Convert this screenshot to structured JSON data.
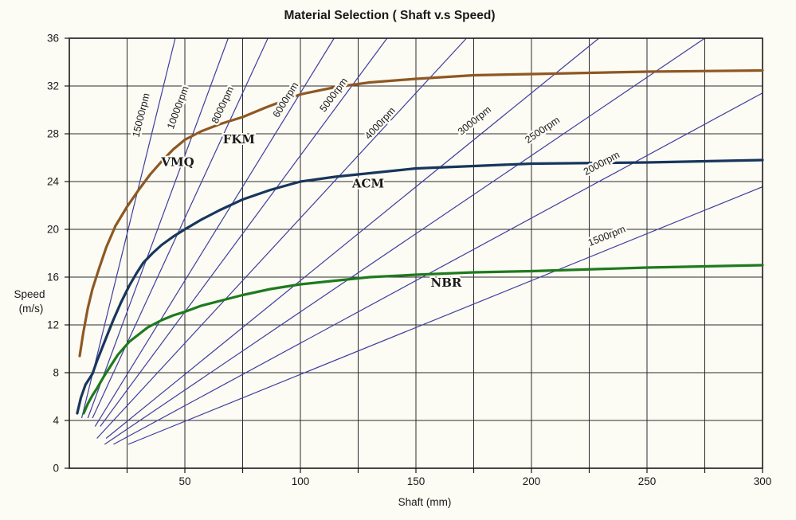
{
  "title": "Material Selection ( Shaft v.s Speed)",
  "axes": {
    "x": {
      "label": "Shaft (mm)",
      "min": 0,
      "max": 300,
      "tick_labels": [
        50,
        100,
        150,
        200,
        250,
        300
      ],
      "grid_step": 25
    },
    "y": {
      "label_line1": "Speed",
      "label_line2": "(m/s)",
      "min": 0,
      "max": 36,
      "tick_labels": [
        0,
        4,
        8,
        12,
        16,
        20,
        24,
        28,
        32,
        36
      ],
      "grid_step": 4
    }
  },
  "colors": {
    "background": "#FCFBF4",
    "grid": "#2b2b2b",
    "frame": "#1a1a1a",
    "rpm_line": "#3E3E9E",
    "fkm_vmq": "#8E5823",
    "acm": "#17365D",
    "nbr": "#1E7A1E",
    "text": "#1a1a1a"
  },
  "chart_data": {
    "type": "line",
    "title": "Material Selection ( Shaft v.s Speed)",
    "xlabel": "Shaft (mm)",
    "ylabel": "Speed (m/s)",
    "xlim": [
      0,
      300
    ],
    "ylim": [
      0,
      36
    ],
    "grid": "on",
    "legend": "none",
    "series": [
      {
        "name": "FKM / VMQ",
        "color_key": "fkm_vmq",
        "x": [
          4.5,
          6,
          8,
          10,
          13,
          16,
          20,
          25,
          30,
          35,
          40,
          45,
          50,
          57,
          65,
          75,
          85,
          100,
          115,
          130,
          150,
          175,
          200,
          250,
          300
        ],
        "y": [
          9.4,
          11.3,
          13.4,
          15.0,
          16.8,
          18.5,
          20.3,
          21.9,
          23.3,
          24.6,
          25.7,
          26.7,
          27.5,
          28.2,
          28.8,
          29.4,
          30.2,
          31.3,
          31.9,
          32.3,
          32.6,
          32.9,
          33.0,
          33.2,
          33.3
        ]
      },
      {
        "name": "ACM",
        "color_key": "acm",
        "x": [
          3.4,
          5,
          7,
          10,
          12,
          15.5,
          19,
          22.4,
          26,
          29,
          32,
          36,
          40,
          45,
          50,
          57,
          65,
          75,
          87,
          100,
          115,
          130,
          150,
          175,
          200,
          250,
          300
        ],
        "y": [
          4.6,
          5.9,
          7.0,
          7.9,
          9.0,
          10.7,
          12.4,
          13.9,
          15.3,
          16.3,
          17.2,
          18.0,
          18.7,
          19.4,
          20.0,
          20.8,
          21.6,
          22.5,
          23.3,
          24.0,
          24.4,
          24.7,
          25.1,
          25.3,
          25.5,
          25.6,
          25.8
        ]
      },
      {
        "name": "NBR",
        "color_key": "nbr",
        "x": [
          6.2,
          8,
          10,
          12,
          15,
          18,
          21,
          26,
          30,
          34,
          40,
          45,
          50,
          57,
          65,
          75,
          87,
          100,
          115,
          130,
          150,
          175,
          200,
          250,
          300
        ],
        "y": [
          4.6,
          5.4,
          6.1,
          6.7,
          7.7,
          8.6,
          9.5,
          10.6,
          11.2,
          11.8,
          12.4,
          12.8,
          13.1,
          13.6,
          14.0,
          14.5,
          15.0,
          15.4,
          15.7,
          16.0,
          16.2,
          16.4,
          16.5,
          16.8,
          17.0
        ]
      }
    ],
    "material_labels": [
      {
        "text": "FKM",
        "x": 73.4,
        "y": 27.2,
        "series": "FKM / VMQ"
      },
      {
        "text": "VMQ",
        "x": 46.9,
        "y": 25.3,
        "series": "FKM / VMQ"
      },
      {
        "text": "ACM",
        "x": 129.3,
        "y": 23.5,
        "series": "ACM"
      },
      {
        "text": "NBR",
        "x": 163.1,
        "y": 15.2,
        "series": "NBR"
      }
    ],
    "rpm_lines": {
      "formula": "v_mps = π × d_mm × rpm / 60000",
      "color_key": "rpm_line",
      "lines": [
        {
          "rpm": 15000,
          "label": "15000rpm",
          "v_start": 4.2,
          "label_x": 32.4,
          "label_y": 29.5
        },
        {
          "rpm": 10000,
          "label": "10000rpm",
          "v_start": 4.2,
          "label_x": 48.3,
          "label_y": 30.1
        },
        {
          "rpm": 8000,
          "label": "8000rpm",
          "v_start": 4.2,
          "label_x": 67.6,
          "label_y": 30.3
        },
        {
          "rpm": 6000,
          "label": "6000rpm",
          "v_start": 3.5,
          "label_x": 94.8,
          "label_y": 30.7
        },
        {
          "rpm": 5000,
          "label": "5000rpm",
          "v_start": 3.5,
          "label_x": 115.5,
          "label_y": 31.1
        },
        {
          "rpm": 4000,
          "label": "4000rpm",
          "v_start": 2.5,
          "label_x": 135.5,
          "label_y": 28.7
        },
        {
          "rpm": 3000,
          "label": "3000rpm",
          "v_start": 2.5,
          "label_x": 176.2,
          "label_y": 28.9
        },
        {
          "rpm": 2500,
          "label": "2500rpm",
          "v_start": 2.0,
          "label_x": 205.5,
          "label_y": 28.1
        },
        {
          "rpm": 2000,
          "label": "2000rpm",
          "v_start": 2.0,
          "label_x": 231.0,
          "label_y": 25.3
        },
        {
          "rpm": 1500,
          "label": "1500rpm",
          "v_start": 2.0,
          "label_x": 233.1,
          "label_y": 19.2
        }
      ]
    }
  }
}
